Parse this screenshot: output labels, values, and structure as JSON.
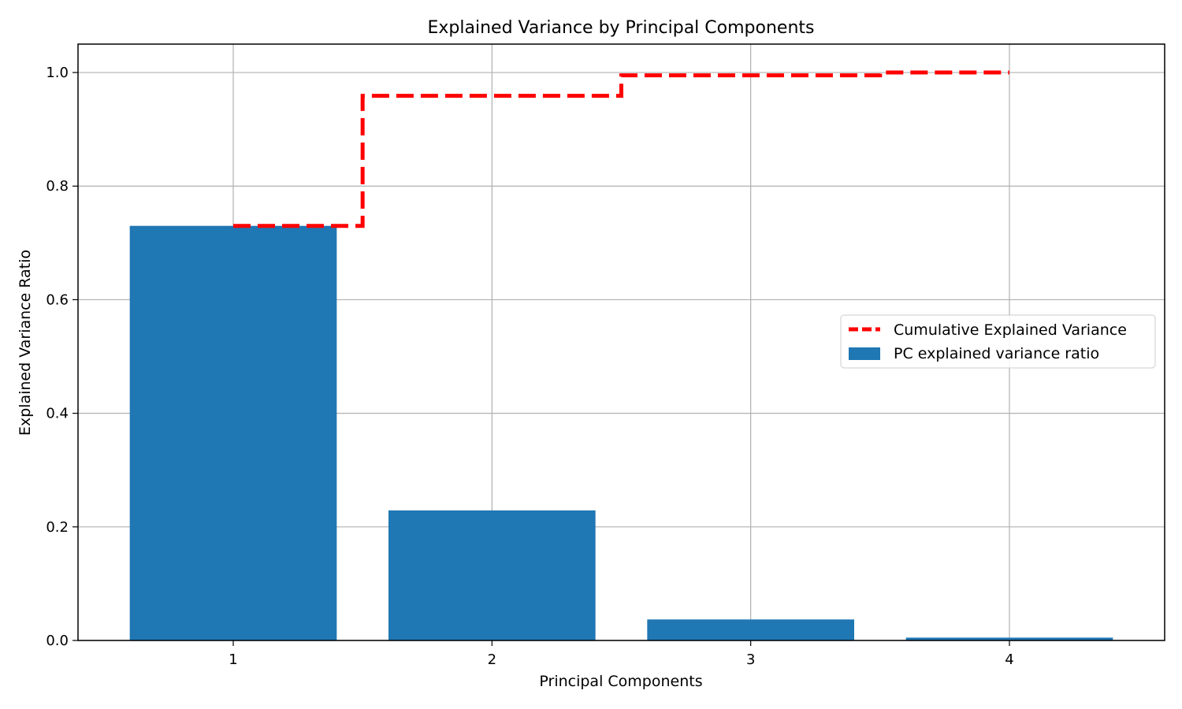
{
  "chart_data": {
    "type": "bar",
    "title": "Explained Variance by Principal Components",
    "xlabel": "Principal Components",
    "ylabel": "Explained Variance Ratio",
    "categories": [
      "1",
      "2",
      "3",
      "4"
    ],
    "x": [
      1,
      2,
      3,
      4
    ],
    "xlim": [
      0.4,
      4.6
    ],
    "ylim": [
      0.0,
      1.05
    ],
    "yticks": [
      0.0,
      0.2,
      0.4,
      0.6,
      0.8,
      1.0
    ],
    "ytick_labels": [
      "0.0",
      "0.2",
      "0.4",
      "0.6",
      "0.8",
      "1.0"
    ],
    "grid": true,
    "legend_position": "center-right",
    "series": [
      {
        "name": "PC explained variance ratio",
        "type": "bar",
        "values": [
          0.73,
          0.229,
          0.037,
          0.005
        ],
        "color": "#1f77b4"
      },
      {
        "name": "Cumulative Explained Variance",
        "type": "step",
        "values": [
          0.73,
          0.959,
          0.995,
          1.0
        ],
        "color": "#ff0000",
        "line_style": "dashed"
      }
    ]
  }
}
